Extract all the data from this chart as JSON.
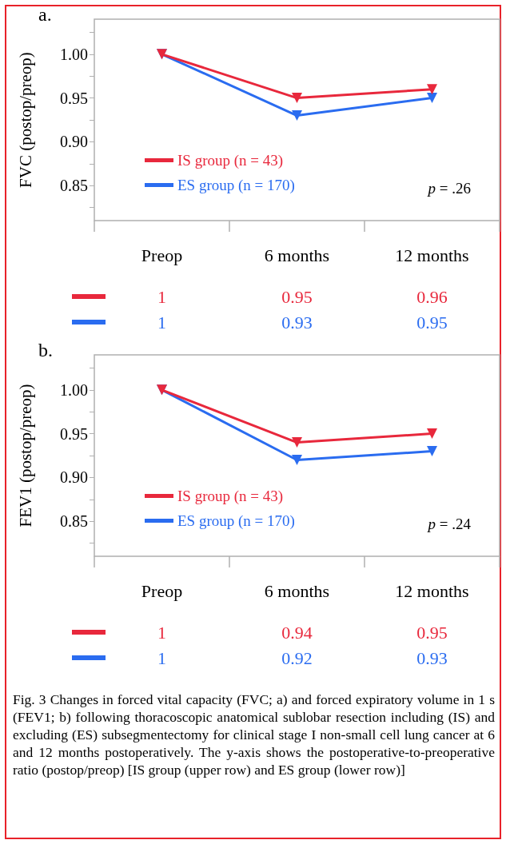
{
  "chart_data": [
    {
      "type": "line",
      "title": "a.",
      "ylabel": "FVC (postop/preop)",
      "categories": [
        "Preop",
        "6 months",
        "12 months"
      ],
      "series": [
        {
          "name": "IS group (n = 43)",
          "color": "#e8283c",
          "values": [
            1,
            0.95,
            0.96
          ]
        },
        {
          "name": "ES group (n = 170)",
          "color": "#2a6cf0",
          "values": [
            1,
            0.93,
            0.95
          ]
        }
      ],
      "ylim": [
        0.81,
        1.04
      ],
      "yticks": [
        {
          "value": 0.825,
          "label": null
        },
        {
          "value": 0.85,
          "label": "0.85"
        },
        {
          "value": 0.875,
          "label": null
        },
        {
          "value": 0.9,
          "label": "0.90"
        },
        {
          "value": 0.925,
          "label": null
        },
        {
          "value": 0.95,
          "label": "0.95"
        },
        {
          "value": 0.975,
          "label": null
        },
        {
          "value": 1,
          "label": "1.00"
        },
        {
          "value": 1.025,
          "label": null
        }
      ],
      "legend": "bottom left",
      "marker": "triangle",
      "data_labels": true,
      "annotations": [
        "p = .26"
      ]
    },
    {
      "type": "line",
      "title": "b.",
      "ylabel": "FEV1 (postop/preop)",
      "categories": [
        "Preop",
        "6 months",
        "12 months"
      ],
      "series": [
        {
          "name": "IS group (n = 43)",
          "color": "#e8283c",
          "values": [
            1,
            0.94,
            0.95
          ]
        },
        {
          "name": "ES group (n = 170)",
          "color": "#2a6cf0",
          "values": [
            1,
            0.92,
            0.93
          ]
        }
      ],
      "ylim": [
        0.81,
        1.04
      ],
      "yticks": [
        {
          "value": 0.825,
          "label": null
        },
        {
          "value": 0.85,
          "label": "0.85"
        },
        {
          "value": 0.875,
          "label": null
        },
        {
          "value": 0.9,
          "label": "0.90"
        },
        {
          "value": 0.925,
          "label": null
        },
        {
          "value": 0.95,
          "label": "0.95"
        },
        {
          "value": 0.975,
          "label": null
        },
        {
          "value": 1,
          "label": "1.00"
        },
        {
          "value": 1.025,
          "label": null
        }
      ],
      "legend": "bottom left",
      "marker": "triangle",
      "data_labels": true,
      "annotations": [
        "p = .24",
        "Fig. 3 Changes in forced vital capacity (FVC; a) and forced expiratory volume in 1 s (FEV1; b) following thoracoscopic anatomical sublobar resection including (IS) and excluding (ES) subsegmentectomy for clinical stage I non-small cell lung cancer at 6 and 12 months postoperatively. The y-axis shows the postoperative-to-preoperative ratio (postop/preop) [IS group (upper row) and ES group (lower row)]"
      ]
    }
  ]
}
